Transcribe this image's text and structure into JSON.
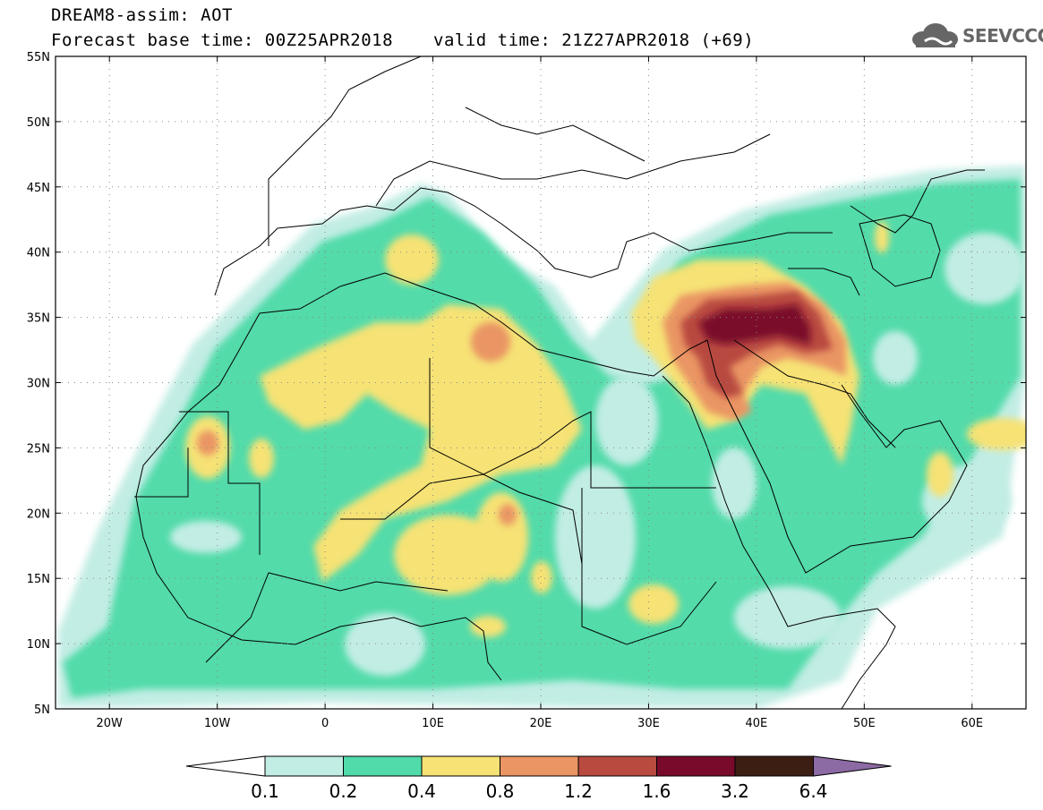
{
  "header": {
    "title": "DREAM8-assim: AOT",
    "base_time": "Forecast base time: 00Z25APR2018",
    "valid_time": "valid time: 21Z27APR2018 (+69)"
  },
  "logo": {
    "text": "SEEVCCC",
    "icon": "cloud-icon"
  },
  "map": {
    "lon_range": [
      -25,
      65
    ],
    "lat_range": [
      5,
      55
    ],
    "lat_labels": [
      "55N",
      "50N",
      "45N",
      "40N",
      "35N",
      "30N",
      "25N",
      "20N",
      "15N",
      "10N",
      "5N"
    ],
    "lon_labels": [
      "20W",
      "10W",
      "0",
      "10E",
      "20E",
      "30E",
      "40E",
      "50E",
      "60E"
    ],
    "lat_values": [
      55,
      50,
      45,
      40,
      35,
      30,
      25,
      20,
      15,
      10,
      5
    ],
    "lon_values": [
      -20,
      -10,
      0,
      10,
      20,
      30,
      40,
      50,
      60
    ]
  },
  "colorbar": {
    "labels": [
      "0.1",
      "0.2",
      "0.4",
      "0.8",
      "1.2",
      "1.6",
      "3.2",
      "6.4"
    ],
    "colors": [
      "#c2ede4",
      "#52dbaa",
      "#f6e275",
      "#ea9563",
      "#b84a3f",
      "#7a0a2c",
      "#3c1f12",
      "#8c6aa4"
    ],
    "under_color": "#ffffff"
  }
}
